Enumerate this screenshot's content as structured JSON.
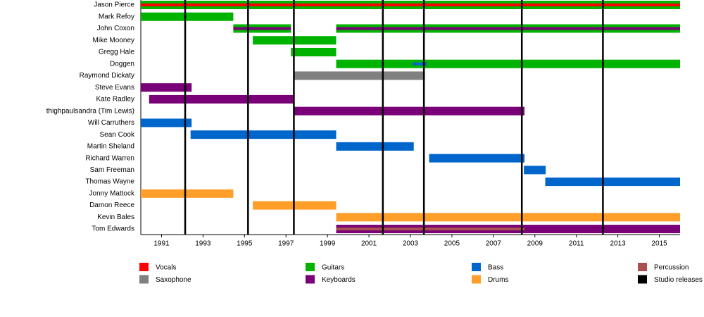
{
  "chart_data": {
    "type": "timeline",
    "categories": [
      "Jason Pierce",
      "Mark Refoy",
      "John Coxon",
      "Mike Mooney",
      "Gregg Hale",
      "Doggen",
      "Raymond Dickaty",
      "Steve Evans",
      "Kate Radley",
      "thighpaulsandra (Tim Lewis)",
      "Will Carruthers",
      "Sean Cook",
      "Martin Sheland",
      "Richard Warren",
      "Sam Freeman",
      "Thomas Wayne",
      "Jonny Mattock",
      "Damon Reece",
      "Kevin Bales",
      "Tom Edwards"
    ],
    "xlim": [
      1990,
      2016
    ],
    "xticks": [
      1991,
      1993,
      1995,
      1997,
      1999,
      2001,
      2003,
      2005,
      2007,
      2009,
      2011,
      2013,
      2015
    ],
    "series": [
      {
        "name": "Vocals",
        "color": "#ff0000",
        "values": [
          null,
          null,
          null,
          null,
          null,
          null,
          null,
          null,
          null,
          null,
          null,
          null,
          null,
          null,
          null,
          null,
          null,
          null,
          null,
          null
        ],
        "secondary": [
          [
            [
              1990,
              2016
            ]
          ],
          null,
          null,
          null,
          null,
          null,
          null,
          null,
          null,
          null,
          null,
          null,
          null,
          null,
          null,
          null,
          null,
          null,
          null,
          null
        ]
      },
      {
        "name": "Guitars",
        "color": "#00b300",
        "values": [
          [
            [
              1990,
              2016
            ]
          ],
          [
            [
              1990,
              1994.46
            ]
          ],
          [
            [
              1994.46,
              1997.24
            ],
            [
              1999.42,
              2016
            ]
          ],
          [
            [
              1995.4,
              1999.42
            ]
          ],
          [
            [
              1997.24,
              1999.42
            ]
          ],
          [
            [
              1999.42,
              2016
            ]
          ],
          null,
          null,
          null,
          null,
          null,
          null,
          null,
          null,
          null,
          null,
          null,
          null,
          null,
          null
        ],
        "secondary": [
          null,
          null,
          null,
          null,
          null,
          null,
          null,
          null,
          null,
          null,
          null,
          null,
          null,
          null,
          null,
          null,
          null,
          null,
          null,
          null
        ]
      },
      {
        "name": "Bass",
        "color": "#0066cc",
        "values": [
          null,
          null,
          null,
          null,
          null,
          null,
          null,
          null,
          null,
          null,
          [
            [
              1990,
              1992.45
            ]
          ],
          [
            [
              1992.4,
              1999.42
            ]
          ],
          [
            [
              1999.42,
              2003.16
            ]
          ],
          [
            [
              2003.9,
              2008.5
            ]
          ],
          [
            [
              2008.47,
              2009.52
            ]
          ],
          [
            [
              2009.5,
              2016
            ]
          ],
          null,
          null,
          null,
          null
        ],
        "secondary": [
          null,
          null,
          null,
          null,
          null,
          [
            [
              2003.1,
              2003.8
            ]
          ],
          null,
          null,
          null,
          null,
          null,
          null,
          null,
          null,
          null,
          null,
          null,
          null,
          null,
          null
        ]
      },
      {
        "name": "Percussion",
        "color": "#aa5050",
        "values": [
          null,
          null,
          null,
          null,
          null,
          null,
          null,
          null,
          null,
          null,
          null,
          null,
          null,
          null,
          null,
          null,
          null,
          null,
          null,
          null
        ],
        "secondary": [
          null,
          null,
          null,
          null,
          null,
          null,
          null,
          null,
          null,
          null,
          null,
          null,
          null,
          null,
          null,
          null,
          null,
          null,
          null,
          [
            [
              1999.42,
              2008.5
            ]
          ]
        ]
      },
      {
        "name": "Saxophone",
        "color": "#808080",
        "values": [
          null,
          null,
          null,
          null,
          null,
          null,
          [
            [
              1997.4,
              2003.7
            ]
          ],
          null,
          null,
          null,
          null,
          null,
          null,
          null,
          null,
          null,
          null,
          null,
          null,
          null
        ],
        "secondary": [
          null,
          null,
          null,
          null,
          null,
          null,
          null,
          null,
          null,
          null,
          null,
          null,
          null,
          null,
          null,
          null,
          null,
          null,
          null,
          null
        ]
      },
      {
        "name": "Keyboards",
        "color": "#7a0077",
        "values": [
          null,
          null,
          null,
          null,
          null,
          null,
          null,
          [
            [
              1990,
              1992.45
            ]
          ],
          [
            [
              1990.4,
              1997.38
            ]
          ],
          [
            [
              1997.4,
              2008.5
            ]
          ],
          null,
          null,
          null,
          null,
          null,
          null,
          null,
          null,
          null,
          [
            [
              1999.42,
              2016
            ]
          ]
        ],
        "secondary": [
          null,
          null,
          [
            [
              1994.46,
              1997.24
            ],
            [
              1999.42,
              2016
            ]
          ],
          null,
          null,
          null,
          null,
          null,
          null,
          null,
          null,
          null,
          null,
          null,
          null,
          null,
          null,
          null,
          null,
          null
        ]
      },
      {
        "name": "Drums",
        "color": "#ff9f2a",
        "values": [
          null,
          null,
          null,
          null,
          null,
          null,
          null,
          null,
          null,
          null,
          null,
          null,
          null,
          null,
          null,
          null,
          [
            [
              1990,
              1994.46
            ]
          ],
          [
            [
              1995.4,
              1999.42
            ]
          ],
          [
            [
              1999.42,
              2016
            ]
          ],
          null
        ],
        "secondary": [
          null,
          null,
          null,
          null,
          null,
          null,
          null,
          null,
          null,
          null,
          null,
          null,
          null,
          null,
          null,
          null,
          null,
          null,
          null,
          null
        ]
      }
    ],
    "releases": {
      "name": "Studio releases",
      "color": "#000000",
      "values": [
        1992.14,
        1995.17,
        1997.38,
        2001.67,
        2003.65,
        2008.37,
        2012.28
      ]
    }
  }
}
